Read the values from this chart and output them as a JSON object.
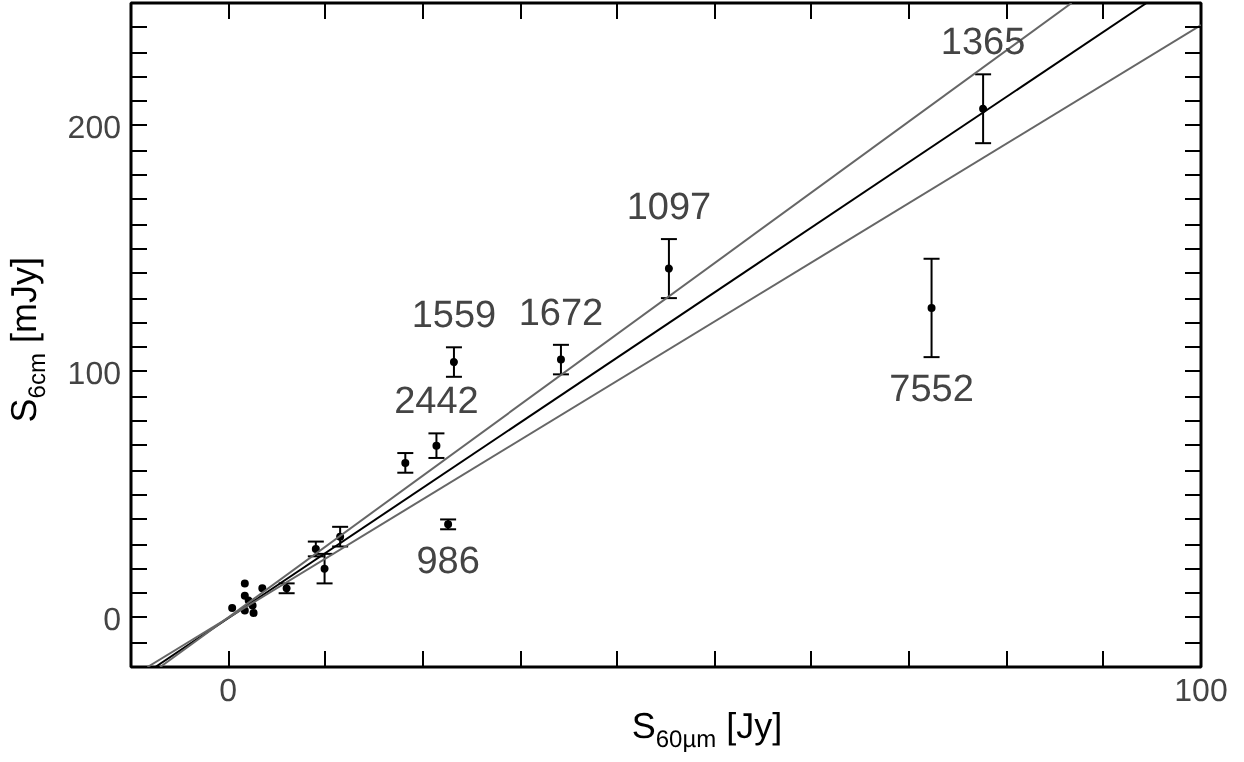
{
  "chart_data": {
    "type": "scatter",
    "xlabel": "S$_{60µm}$ [Jy]",
    "ylabel": "S$_{6cm}$ [mJy]",
    "xlim": [
      -10,
      100
    ],
    "ylim": [
      -20,
      250
    ],
    "xticks": [
      0,
      {
        "value": 10,
        "label": null
      },
      {
        "value": 20,
        "label": null
      },
      {
        "value": 30,
        "label": null
      },
      {
        "value": 40,
        "label": null
      },
      {
        "value": 50,
        "label": null
      },
      {
        "value": 60,
        "label": null
      },
      {
        "value": 70,
        "label": null
      },
      {
        "value": 80,
        "label": null
      },
      {
        "value": 90,
        "label": null
      },
      100
    ],
    "yticks": [
      {
        "value": -10,
        "label": null
      },
      0,
      {
        "value": 10,
        "label": null
      },
      {
        "value": 20,
        "label": null
      },
      {
        "value": 30,
        "label": null
      },
      {
        "value": 40,
        "label": null
      },
      {
        "value": 50,
        "label": null
      },
      {
        "value": 60,
        "label": null
      },
      {
        "value": 70,
        "label": null
      },
      {
        "value": 80,
        "label": null
      },
      {
        "value": 90,
        "label": null
      },
      100,
      {
        "value": 110,
        "label": null
      },
      {
        "value": 120,
        "label": null
      },
      {
        "value": 130,
        "label": null
      },
      {
        "value": 140,
        "label": null
      },
      {
        "value": 150,
        "label": null
      },
      {
        "value": 160,
        "label": null
      },
      {
        "value": 170,
        "label": null
      },
      {
        "value": 180,
        "label": null
      },
      {
        "value": 190,
        "label": null
      },
      200,
      {
        "value": 210,
        "label": null
      },
      {
        "value": 220,
        "label": null
      },
      {
        "value": 230,
        "label": null
      },
      {
        "value": 240,
        "label": null
      }
    ],
    "grid": false,
    "marker": "circle",
    "series": [
      {
        "color": "#000000",
        "x": [
          77.6,
          72.3,
          45.3,
          34.2,
          23.2,
          21.4,
          18.2,
          22.6,
          11.5,
          9.9,
          9.0,
          6.0,
          3.5,
          1.7,
          1.7,
          0.4,
          1.7,
          2.5,
          2.6,
          2.1
        ],
        "values": [
          207,
          126,
          142,
          105,
          104,
          70,
          63,
          38,
          33,
          20,
          28,
          12,
          12,
          14,
          9,
          4,
          3,
          5,
          2,
          7
        ],
        "errors": [
          14,
          20,
          12,
          6,
          6,
          5,
          4,
          2,
          4,
          6,
          3,
          2,
          null,
          null,
          null,
          null,
          null,
          null,
          null,
          null
        ]
      },
      {
        "type": "line",
        "marker": "none",
        "color": "#000000",
        "x": [
          -7.5,
          94.4
        ],
        "values": [
          -20,
          250
        ]
      },
      {
        "type": "line",
        "marker": "none",
        "color": "#666666",
        "x": [
          -7,
          86.7
        ],
        "values": [
          -20,
          250
        ]
      },
      {
        "type": "line",
        "marker": "none",
        "color": "#666666",
        "x": [
          -8.3,
          100
        ],
        "values": [
          -20,
          241
        ]
      }
    ],
    "annotations": [
      {
        "text": "1365",
        "x": 77.6,
        "y": 207
      },
      {
        "text": "1097",
        "x": 45.3,
        "y": 142
      },
      {
        "text": "1672",
        "x": 34.2,
        "y": 105
      },
      {
        "text": "1559",
        "x": 23.2,
        "y": 104
      },
      {
        "text": "2442",
        "x": 21.4,
        "y": 70
      },
      {
        "text": "986",
        "x": 22.6,
        "y": 38
      },
      {
        "text": "7552",
        "x": 72.3,
        "y": 126
      }
    ]
  }
}
